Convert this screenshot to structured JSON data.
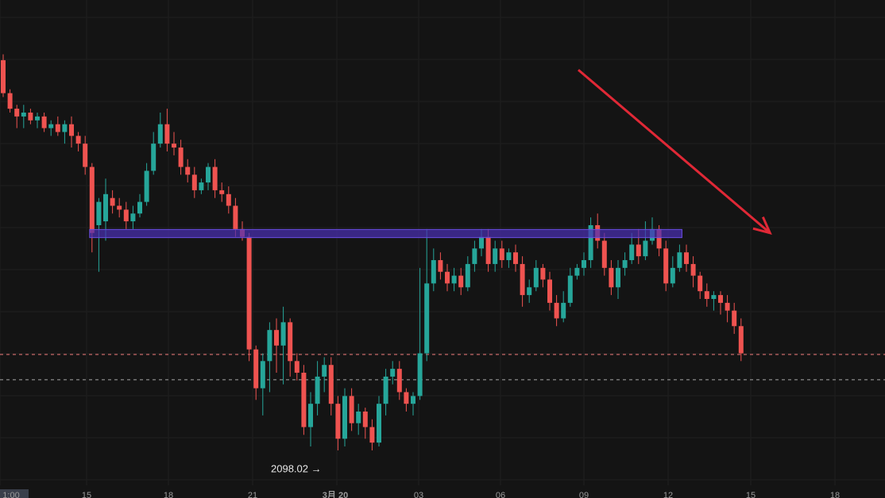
{
  "chart_data": {
    "type": "candlestick",
    "x_ticks": [
      "1:00",
      "15",
      "18",
      "21",
      "3月 20",
      "03",
      "06",
      "09",
      "12",
      "15",
      "18"
    ],
    "low_marker": {
      "label": "2098.02",
      "arrow": "→",
      "value": 2098.02
    },
    "y_range": [
      2090,
      2215
    ],
    "resistance_zone": {
      "low": 2153.8,
      "high": 2155.9,
      "from_index": 13,
      "to_index": 99
    },
    "reference_lines": [
      {
        "value": 2123.7,
        "color": "#f07a7a"
      },
      {
        "value": 2117.2,
        "color": "#a8a8a8"
      }
    ],
    "trend_arrow": {
      "from": [
        80,
        2197
      ],
      "to": [
        102,
        2155
      ],
      "color": "#e02836"
    },
    "candles": [
      [
        2199.5,
        2191,
        2201,
        2190
      ],
      [
        2191,
        2187,
        2192,
        2186
      ],
      [
        2187,
        2185,
        2188,
        2182
      ],
      [
        2185,
        2186,
        2188,
        2182
      ],
      [
        2186,
        2184,
        2187,
        2183
      ],
      [
        2184,
        2185,
        2186,
        2182
      ],
      [
        2185,
        2182,
        2186,
        2181
      ],
      [
        2182,
        2183,
        2184,
        2180
      ],
      [
        2183,
        2181,
        2185,
        2180
      ],
      [
        2181,
        2183,
        2184,
        2178
      ],
      [
        2183,
        2180,
        2185,
        2177
      ],
      [
        2180,
        2178,
        2181,
        2176
      ],
      [
        2178,
        2172,
        2180,
        2170
      ],
      [
        2172,
        2155,
        2173,
        2150
      ],
      [
        2157,
        2163,
        2164,
        2145
      ],
      [
        2158,
        2165,
        2169,
        2153
      ],
      [
        2164,
        2162,
        2166,
        2160
      ],
      [
        2162,
        2161,
        2164,
        2159
      ],
      [
        2161,
        2158,
        2163,
        2156
      ],
      [
        2158,
        2160,
        2162,
        2156
      ],
      [
        2160,
        2163,
        2165,
        2159
      ],
      [
        2163,
        2171,
        2173,
        2162
      ],
      [
        2171,
        2178,
        2181,
        2170
      ],
      [
        2178,
        2183,
        2186,
        2177
      ],
      [
        2183,
        2178,
        2187,
        2176
      ],
      [
        2178,
        2177,
        2181,
        2175
      ],
      [
        2177,
        2172,
        2179,
        2170
      ],
      [
        2172,
        2170,
        2174,
        2168
      ],
      [
        2170,
        2166,
        2172,
        2164
      ],
      [
        2166,
        2168,
        2169,
        2165
      ],
      [
        2168,
        2172,
        2173,
        2166
      ],
      [
        2172,
        2166,
        2174,
        2164
      ],
      [
        2166,
        2165,
        2168,
        2163
      ],
      [
        2165,
        2162,
        2167,
        2160
      ],
      [
        2162,
        2156,
        2164,
        2154
      ],
      [
        2156,
        2154,
        2158,
        2153
      ],
      [
        2154,
        2125,
        2155,
        2122
      ],
      [
        2125,
        2115,
        2126,
        2112
      ],
      [
        2115,
        2122,
        2124,
        2108
      ],
      [
        2122,
        2130,
        2132,
        2114
      ],
      [
        2130,
        2126,
        2133,
        2119
      ],
      [
        2126,
        2132,
        2136,
        2116
      ],
      [
        2132,
        2122,
        2133,
        2118
      ],
      [
        2122,
        2119,
        2124,
        2117
      ],
      [
        2119,
        2105,
        2121,
        2103
      ],
      [
        2105,
        2111,
        2114,
        2100
      ],
      [
        2111,
        2118,
        2122,
        2108
      ],
      [
        2118,
        2121,
        2123,
        2114
      ],
      [
        2121,
        2111,
        2123,
        2108
      ],
      [
        2111,
        2102,
        2113,
        2099
      ],
      [
        2102,
        2113,
        2115,
        2100
      ],
      [
        2113,
        2106,
        2115,
        2104
      ],
      [
        2106,
        2109,
        2111,
        2103
      ],
      [
        2109,
        2105,
        2110,
        2102
      ],
      [
        2105,
        2101,
        2107,
        2099
      ],
      [
        2101,
        2111,
        2113,
        2100
      ],
      [
        2111,
        2118,
        2120,
        2108
      ],
      [
        2118,
        2120,
        2122,
        2116
      ],
      [
        2120,
        2114,
        2122,
        2112
      ],
      [
        2114,
        2111,
        2115,
        2109
      ],
      [
        2111,
        2113,
        2114,
        2108
      ],
      [
        2113,
        2124,
        2146,
        2112
      ],
      [
        2124,
        2142,
        2156,
        2122
      ],
      [
        2142,
        2148,
        2151,
        2140
      ],
      [
        2148,
        2145,
        2150,
        2143
      ],
      [
        2145,
        2142,
        2147,
        2140
      ],
      [
        2142,
        2144,
        2146,
        2140
      ],
      [
        2144,
        2141,
        2146,
        2139
      ],
      [
        2141,
        2147,
        2149,
        2140
      ],
      [
        2147,
        2151,
        2153,
        2145
      ],
      [
        2151,
        2154,
        2156,
        2149
      ],
      [
        2154,
        2147,
        2156,
        2145
      ],
      [
        2147,
        2151,
        2153,
        2145
      ],
      [
        2151,
        2148,
        2153,
        2146
      ],
      [
        2148,
        2150,
        2151,
        2146
      ],
      [
        2150,
        2147,
        2152,
        2145
      ],
      [
        2147,
        2139,
        2149,
        2136
      ],
      [
        2139,
        2141,
        2143,
        2137
      ],
      [
        2141,
        2146,
        2148,
        2140
      ],
      [
        2146,
        2143,
        2147,
        2141
      ],
      [
        2143,
        2137,
        2145,
        2135
      ],
      [
        2137,
        2133,
        2139,
        2131
      ],
      [
        2133,
        2137,
        2140,
        2132
      ],
      [
        2137,
        2144,
        2146,
        2136
      ],
      [
        2144,
        2146,
        2147,
        2143
      ],
      [
        2146,
        2148,
        2150,
        2144
      ],
      [
        2148,
        2157,
        2159,
        2146
      ],
      [
        2157,
        2153,
        2160,
        2151
      ],
      [
        2153,
        2146,
        2155,
        2144
      ],
      [
        2146,
        2141,
        2148,
        2139
      ],
      [
        2141,
        2146,
        2148,
        2138
      ],
      [
        2146,
        2148,
        2150,
        2144
      ],
      [
        2148,
        2152,
        2155,
        2147
      ],
      [
        2152,
        2149,
        2156,
        2147
      ],
      [
        2149,
        2153,
        2158,
        2148
      ],
      [
        2153,
        2156,
        2159,
        2152
      ],
      [
        2156,
        2151,
        2157,
        2149
      ],
      [
        2151,
        2142,
        2153,
        2140
      ],
      [
        2142,
        2146,
        2149,
        2141
      ],
      [
        2146,
        2150,
        2152,
        2145
      ],
      [
        2150,
        2147,
        2152,
        2145
      ],
      [
        2147,
        2144,
        2149,
        2141
      ],
      [
        2144,
        2140,
        2145,
        2138
      ],
      [
        2140,
        2138,
        2142,
        2136
      ],
      [
        2138,
        2139,
        2140,
        2135
      ],
      [
        2139,
        2137,
        2140,
        2134
      ],
      [
        2137,
        2135,
        2139,
        2132
      ],
      [
        2135,
        2131,
        2137,
        2129
      ],
      [
        2131,
        2124,
        2133,
        2122
      ]
    ],
    "up_color": "#26a69a",
    "down_color": "#ef5350",
    "grid": true
  }
}
